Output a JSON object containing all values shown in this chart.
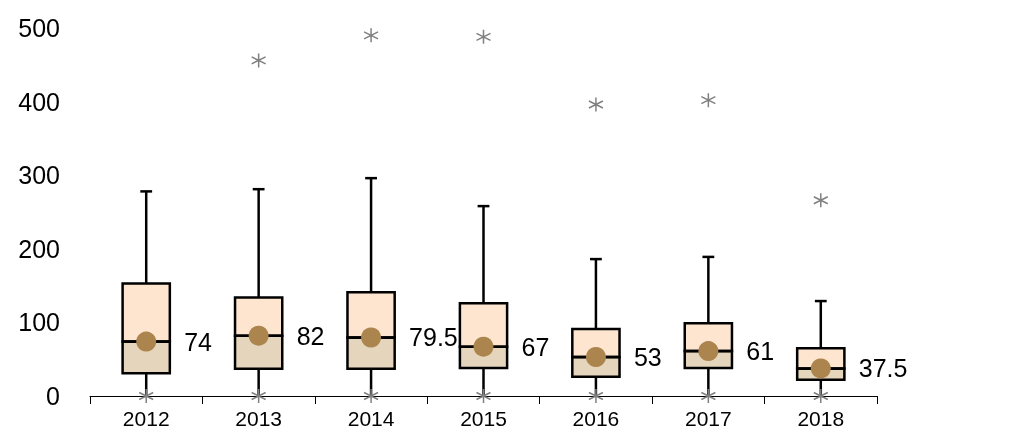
{
  "chart_data": {
    "type": "box",
    "categories": [
      "2012",
      "2013",
      "2014",
      "2015",
      "2016",
      "2017",
      "2018"
    ],
    "ylim": [
      0,
      500
    ],
    "yticks": [
      0,
      100,
      200,
      300,
      400,
      500
    ],
    "grid": false,
    "series": [
      {
        "color": "#e4d5bc",
        "value_labels": [
          "74",
          "82",
          "79.5",
          "67",
          "53",
          "61",
          "37.5"
        ],
        "boxes": [
          {
            "low": 0,
            "q1": 31,
            "median": 74,
            "q3": 153,
            "high": 278,
            "mean": 74
          },
          {
            "low": 0,
            "q1": 37,
            "median": 82,
            "q3": 134,
            "high": 281,
            "mean": 82,
            "outliers": [
              456
            ]
          },
          {
            "low": 0,
            "q1": 37,
            "median": 79.5,
            "q3": 141,
            "high": 296,
            "mean": 79.5,
            "outliers": [
              490
            ]
          },
          {
            "low": 0,
            "q1": 38,
            "median": 67,
            "q3": 126,
            "high": 258,
            "mean": 67,
            "outliers": [
              488
            ]
          },
          {
            "low": 0,
            "q1": 26,
            "median": 53,
            "q3": 91,
            "high": 186,
            "mean": 53,
            "outliers": [
              396
            ]
          },
          {
            "low": 0,
            "q1": 38,
            "median": 61,
            "q3": 99,
            "high": 189,
            "mean": 61,
            "outliers": [
              402
            ]
          },
          {
            "low": 0,
            "q1": 22,
            "median": 37.5,
            "q3": 65,
            "high": 129,
            "mean": 37.5,
            "outliers": [
              266
            ]
          }
        ]
      }
    ]
  }
}
